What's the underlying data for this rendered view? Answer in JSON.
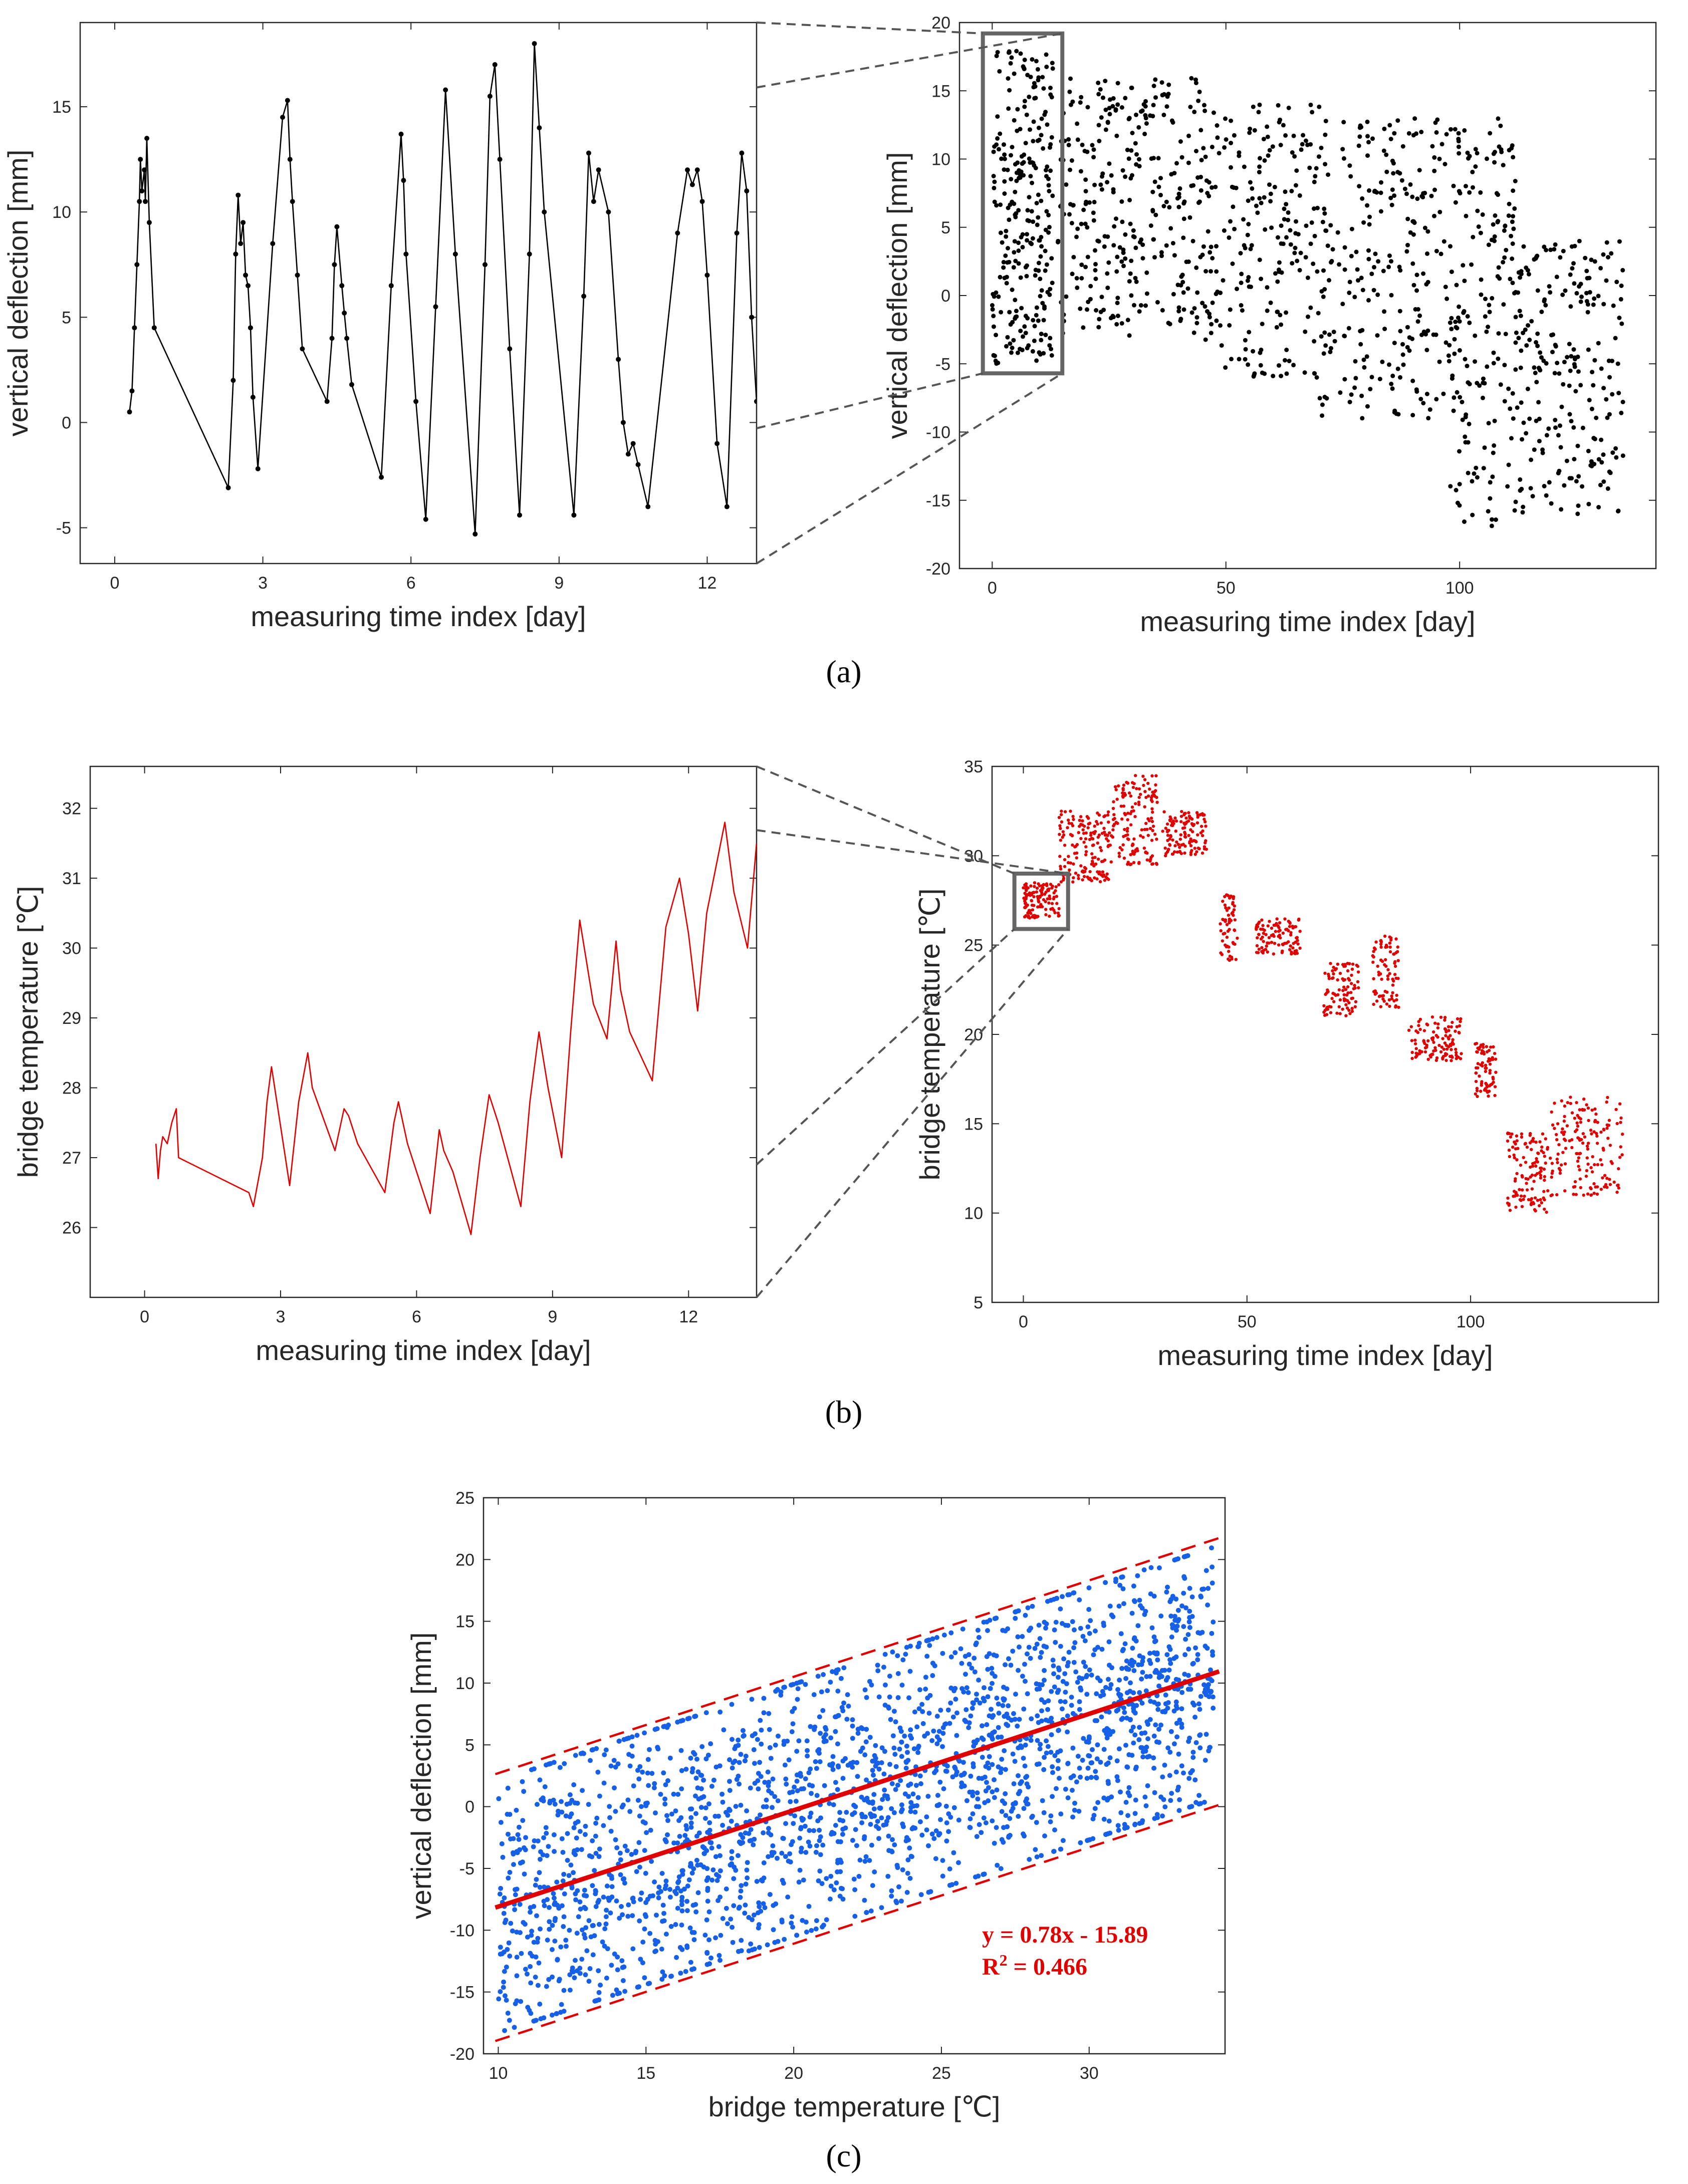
{
  "figure": {
    "panel_labels": [
      "(a)",
      "(b)",
      "(c)"
    ],
    "zoom_box_color": "#666666",
    "connector_color": "#555555"
  },
  "chart_data": [
    {
      "id": "a-left",
      "type": "line",
      "color": "#000000",
      "marker": "dot",
      "xlabel": "measuring time index [day]",
      "ylabel": "vertical deflection [mm]",
      "xlim": [
        -0.7,
        13
      ],
      "ylim": [
        -6.7,
        19
      ],
      "xticks": [
        0,
        3,
        6,
        9,
        12
      ],
      "yticks": [
        -5,
        0,
        5,
        10,
        15
      ],
      "x": [
        0.3,
        0.35,
        0.4,
        0.45,
        0.5,
        0.52,
        0.55,
        0.6,
        0.62,
        0.65,
        0.7,
        0.8,
        2.3,
        2.4,
        2.45,
        2.5,
        2.55,
        2.6,
        2.65,
        2.7,
        2.75,
        2.8,
        2.9,
        3.2,
        3.4,
        3.5,
        3.55,
        3.6,
        3.7,
        3.8,
        4.3,
        4.4,
        4.45,
        4.5,
        4.6,
        4.65,
        4.7,
        4.8,
        5.4,
        5.6,
        5.8,
        5.85,
        5.9,
        6.1,
        6.3,
        6.5,
        6.7,
        6.9,
        7.3,
        7.5,
        7.6,
        7.7,
        7.8,
        8.0,
        8.2,
        8.4,
        8.5,
        8.6,
        8.7,
        9.3,
        9.5,
        9.6,
        9.7,
        9.8,
        10.0,
        10.2,
        10.3,
        10.4,
        10.5,
        10.6,
        10.8,
        11.4,
        11.6,
        11.7,
        11.8,
        11.9,
        12.0,
        12.2,
        12.4,
        12.6,
        12.7,
        12.8,
        12.9,
        13.0
      ],
      "y": [
        0.5,
        1.5,
        4.5,
        7.5,
        10.5,
        12.5,
        11.0,
        12.0,
        10.5,
        13.5,
        9.5,
        4.5,
        -3.1,
        2.0,
        8.0,
        10.8,
        8.5,
        9.5,
        7.0,
        6.5,
        4.5,
        1.2,
        -2.2,
        8.5,
        14.5,
        15.3,
        12.5,
        10.5,
        7.0,
        3.5,
        1.0,
        4.0,
        7.5,
        9.3,
        6.5,
        5.2,
        4.0,
        1.8,
        -2.6,
        6.5,
        13.7,
        11.5,
        8.0,
        1.0,
        -4.6,
        5.5,
        15.8,
        8.0,
        -5.3,
        7.5,
        15.5,
        17.0,
        12.5,
        3.5,
        -4.4,
        8.0,
        18.0,
        14.0,
        10.0,
        -4.4,
        6.0,
        12.8,
        10.5,
        12.0,
        10.0,
        3.0,
        0.0,
        -1.5,
        -1.0,
        -2.0,
        -4.0,
        9.0,
        12.0,
        11.3,
        12.0,
        10.5,
        7.0,
        -1.0,
        -4.0,
        9.0,
        12.8,
        11.0,
        5.0,
        1.0
      ]
    },
    {
      "id": "a-right",
      "type": "scatter",
      "color": "#000000",
      "xlabel": "measuring time index [day]",
      "ylabel": "vertical deflection [mm]",
      "xlim": [
        -7,
        142
      ],
      "ylim": [
        -20,
        20
      ],
      "xticks": [
        0,
        50,
        100
      ],
      "yticks": [
        -20,
        -15,
        -10,
        -5,
        0,
        5,
        10,
        15,
        20
      ],
      "zoom_box": {
        "x": [
          -2,
          15
        ],
        "y": [
          -5.7,
          19.2
        ]
      },
      "clusters": [
        {
          "x": [
            0,
            13
          ],
          "ymin": -5,
          "ymax": 18,
          "n": 260
        },
        {
          "x": [
            14,
            45
          ],
          "ymin": -3,
          "ymax": 16,
          "n": 300
        },
        {
          "x": [
            45,
            70
          ],
          "ymin": -6,
          "ymax": 14,
          "n": 220
        },
        {
          "x": [
            70,
            98
          ],
          "ymin": -9,
          "ymax": 13,
          "n": 240
        },
        {
          "x": [
            98,
            112
          ],
          "ymin": -17,
          "ymax": 13,
          "n": 180
        },
        {
          "x": [
            112,
            135
          ],
          "ymin": -16,
          "ymax": 4,
          "n": 220
        }
      ]
    },
    {
      "id": "b-left",
      "type": "line",
      "color": "#e00000",
      "xlabel": "measuring time index [day]",
      "ylabel": "bridge temperature [℃]",
      "xlim": [
        -1.2,
        13.5
      ],
      "ylim": [
        25,
        32.6
      ],
      "xticks": [
        0,
        3,
        6,
        9,
        12
      ],
      "yticks": [
        26,
        27,
        28,
        29,
        30,
        31,
        32
      ],
      "x": [
        0.25,
        0.3,
        0.35,
        0.4,
        0.5,
        0.6,
        0.7,
        0.75,
        2.3,
        2.4,
        2.6,
        2.7,
        2.8,
        3.2,
        3.4,
        3.6,
        3.7,
        4.2,
        4.4,
        4.5,
        4.6,
        4.7,
        5.3,
        5.5,
        5.6,
        5.8,
        6.3,
        6.5,
        6.6,
        6.8,
        7.2,
        7.4,
        7.6,
        7.8,
        8.3,
        8.5,
        8.7,
        8.9,
        9.2,
        9.4,
        9.6,
        9.7,
        9.9,
        10.2,
        10.4,
        10.5,
        10.7,
        11.2,
        11.5,
        11.8,
        12.0,
        12.2,
        12.4,
        12.8,
        13.0,
        13.3,
        13.5
      ],
      "y": [
        27.2,
        26.7,
        27.1,
        27.3,
        27.2,
        27.5,
        27.7,
        27.0,
        26.5,
        26.3,
        27.0,
        27.8,
        28.3,
        26.6,
        27.8,
        28.5,
        28.0,
        27.1,
        27.7,
        27.6,
        27.4,
        27.2,
        26.5,
        27.5,
        27.8,
        27.2,
        26.2,
        27.4,
        27.1,
        26.8,
        25.9,
        27.0,
        27.9,
        27.5,
        26.3,
        27.8,
        28.8,
        28.0,
        27.0,
        28.8,
        30.4,
        30.0,
        29.2,
        28.7,
        30.1,
        29.4,
        28.8,
        28.1,
        30.3,
        31.0,
        30.2,
        29.1,
        30.5,
        31.8,
        30.8,
        30.0,
        31.5
      ]
    },
    {
      "id": "b-right",
      "type": "scatter",
      "color": "#e00000",
      "xlabel": "measuring time index [day]",
      "ylabel": "bridge temperature [℃]",
      "xlim": [
        -7,
        142
      ],
      "ylim": [
        5,
        35
      ],
      "xticks": [
        0,
        50,
        100
      ],
      "yticks": [
        5,
        10,
        15,
        20,
        25,
        30,
        35
      ],
      "zoom_box": {
        "x": [
          -2,
          10
        ],
        "y": [
          25.9,
          29.0
        ]
      },
      "clusters": [
        {
          "x": [
            0,
            8
          ],
          "ymin": 26.5,
          "ymax": 28.5,
          "n": 120
        },
        {
          "x": [
            8,
            20
          ],
          "ymin": 28.5,
          "ymax": 32.5,
          "n": 160
        },
        {
          "x": [
            20,
            30
          ],
          "ymin": 29.5,
          "ymax": 34.5,
          "n": 140
        },
        {
          "x": [
            31,
            41
          ],
          "ymin": 30.0,
          "ymax": 32.5,
          "n": 120
        },
        {
          "x": [
            44,
            48
          ],
          "ymin": 24.0,
          "ymax": 28.0,
          "n": 60
        },
        {
          "x": [
            52,
            62
          ],
          "ymin": 24.5,
          "ymax": 26.5,
          "n": 100
        },
        {
          "x": [
            67,
            75
          ],
          "ymin": 21.0,
          "ymax": 24.0,
          "n": 90
        },
        {
          "x": [
            78,
            84
          ],
          "ymin": 21.5,
          "ymax": 25.5,
          "n": 80
        },
        {
          "x": [
            86,
            98
          ],
          "ymin": 18.5,
          "ymax": 21.0,
          "n": 110
        },
        {
          "x": [
            101,
            106
          ],
          "ymin": 16.5,
          "ymax": 19.5,
          "n": 70
        },
        {
          "x": [
            108,
            118
          ],
          "ymin": 10.0,
          "ymax": 14.5,
          "n": 120
        },
        {
          "x": [
            118,
            134
          ],
          "ymin": 11.0,
          "ymax": 16.5,
          "n": 160
        }
      ]
    },
    {
      "id": "c",
      "type": "scatter",
      "color": "#1560e6",
      "xlabel": "bridge temperature [℃]",
      "ylabel": "vertical deflection [mm]",
      "xlim": [
        9.5,
        34.6
      ],
      "ylim": [
        -20,
        25
      ],
      "xticks": [
        10,
        15,
        20,
        25,
        30
      ],
      "yticks": [
        -20,
        -15,
        -10,
        -5,
        0,
        5,
        10,
        15,
        20,
        25
      ],
      "fit": {
        "slope": 0.78,
        "intercept": -15.89,
        "band": 10.8
      },
      "equation": "y = 0.78x - 15.89",
      "r2_prefix": "R",
      "r2_sup": "2",
      "r2_value": " = 0.466",
      "n_points": 2200
    }
  ]
}
